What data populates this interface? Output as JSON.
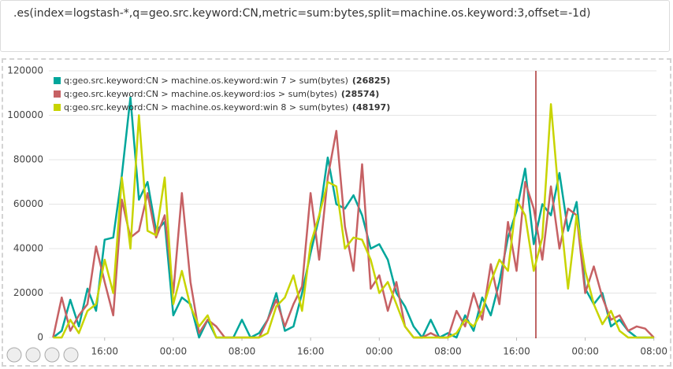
{
  "query": ".es(index=logstash-*,q=geo.src.keyword:CN,metric=sum:bytes,split=machine.os.keyword:3,offset=-1d)",
  "chart_data": {
    "type": "line",
    "x": [
      -6,
      -5,
      -4,
      -3,
      -2,
      -1,
      0,
      1,
      2,
      3,
      4,
      5,
      6,
      7,
      8,
      9,
      10,
      11,
      12,
      13,
      14,
      15,
      16,
      17,
      18,
      19,
      20,
      21,
      22,
      23,
      24,
      25,
      26,
      27,
      28,
      29,
      30,
      31,
      32,
      33,
      34,
      35,
      36,
      37,
      38,
      39,
      40,
      41,
      42,
      43,
      44,
      45,
      46,
      47,
      48,
      49,
      50,
      51,
      52,
      53,
      54,
      55,
      56,
      57,
      58,
      59,
      60,
      61,
      62,
      63,
      64
    ],
    "xlim": [
      -6.5,
      64.3
    ],
    "xticks": [
      {
        "value": 0,
        "label": "16:00"
      },
      {
        "value": 8,
        "label": "00:00"
      },
      {
        "value": 16,
        "label": "08:00"
      },
      {
        "value": 24,
        "label": "16:00"
      },
      {
        "value": 32,
        "label": "00:00"
      },
      {
        "value": 40,
        "label": "08:00"
      },
      {
        "value": 48,
        "label": "16:00"
      },
      {
        "value": 56,
        "label": "00:00"
      },
      {
        "value": 64,
        "label": "08:00"
      }
    ],
    "ylim": [
      0,
      120000
    ],
    "yticks": [
      0,
      20000,
      40000,
      60000,
      80000,
      100000,
      120000
    ],
    "grid": true,
    "series": [
      {
        "name": "q:geo.src.keyword:CN > machine.os.keyword:win 7 > sum(bytes)",
        "legend_label": "(26825)",
        "color": "#00a69b",
        "values": [
          0,
          3000,
          17000,
          5000,
          22000,
          12000,
          44000,
          45000,
          73000,
          108000,
          62000,
          70000,
          48000,
          52000,
          10000,
          18000,
          15000,
          0,
          8000,
          0,
          0,
          0,
          8000,
          0,
          2000,
          8000,
          20000,
          3000,
          5000,
          20000,
          38000,
          54000,
          81000,
          60000,
          58000,
          64000,
          55000,
          40000,
          42000,
          35000,
          20000,
          14000,
          5000,
          0,
          8000,
          0,
          2000,
          0,
          10000,
          3000,
          18000,
          10000,
          25000,
          45000,
          57000,
          76000,
          42000,
          60000,
          55000,
          74000,
          48000,
          61000,
          22000,
          15000,
          20000,
          5000,
          8000,
          3000,
          0,
          0,
          0
        ]
      },
      {
        "name": "q:geo.src.keyword:CN > machine.os.keyword:ios > sum(bytes)",
        "legend_label": "(28574)",
        "color": "#c66164",
        "values": [
          0,
          18000,
          3000,
          10000,
          15000,
          41000,
          25000,
          10000,
          62000,
          45000,
          48000,
          65000,
          45000,
          55000,
          20000,
          65000,
          25000,
          2000,
          8000,
          5000,
          0,
          0,
          0,
          0,
          0,
          8000,
          17000,
          5000,
          15000,
          23000,
          65000,
          35000,
          72000,
          93000,
          50000,
          30000,
          78000,
          22000,
          28000,
          12000,
          25000,
          5000,
          0,
          0,
          2000,
          0,
          0,
          12000,
          5000,
          20000,
          8000,
          33000,
          15000,
          52000,
          30000,
          70000,
          58000,
          35000,
          68000,
          40000,
          58000,
          55000,
          20000,
          32000,
          18000,
          8000,
          10000,
          3000,
          5000,
          4000,
          0
        ]
      },
      {
        "name": "q:geo.src.keyword:CN > machine.os.keyword:win 8 > sum(bytes)",
        "legend_label": "(48197)",
        "color": "#c8d400",
        "values": [
          0,
          0,
          8000,
          2000,
          12000,
          15000,
          35000,
          20000,
          72000,
          40000,
          100000,
          48000,
          46000,
          72000,
          15000,
          30000,
          14000,
          5000,
          10000,
          0,
          0,
          0,
          0,
          0,
          0,
          2000,
          14000,
          18000,
          28000,
          12000,
          42000,
          55000,
          70000,
          68000,
          40000,
          45000,
          44000,
          35000,
          20000,
          25000,
          15000,
          5000,
          0,
          0,
          0,
          0,
          0,
          2000,
          8000,
          5000,
          12000,
          25000,
          35000,
          30000,
          62000,
          55000,
          30000,
          45000,
          105000,
          60000,
          22000,
          55000,
          30000,
          15000,
          6000,
          12000,
          3000,
          0,
          0,
          0,
          0
        ]
      }
    ]
  }
}
